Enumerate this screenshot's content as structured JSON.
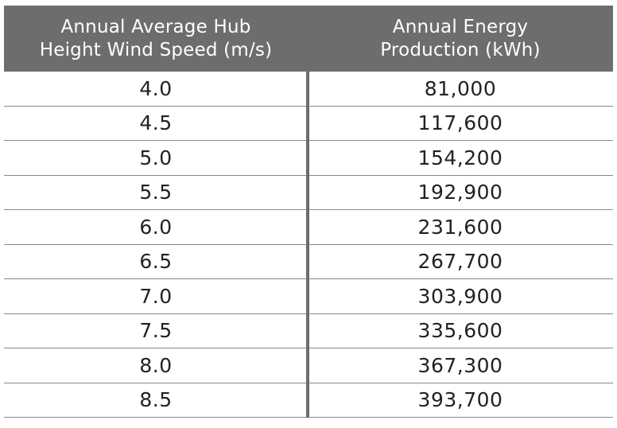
{
  "table": {
    "headers": [
      "Annual Average Hub\nHeight Wind Speed (m/s)",
      "Annual Energy\nProduction (kWh)"
    ],
    "rows": [
      [
        "4.0",
        "81,000"
      ],
      [
        "4.5",
        "117,600"
      ],
      [
        "5.0",
        "154,200"
      ],
      [
        "5.5",
        "192,900"
      ],
      [
        "6.0",
        "231,600"
      ],
      [
        "6.5",
        "267,700"
      ],
      [
        "7.0",
        "303,900"
      ],
      [
        "7.5",
        "335,600"
      ],
      [
        "8.0",
        "367,300"
      ],
      [
        "8.5",
        "393,700"
      ]
    ]
  },
  "colors": {
    "header_bg": "#6d6d6d",
    "header_text": "#ffffff",
    "row_divider": "#8a8a8a"
  }
}
